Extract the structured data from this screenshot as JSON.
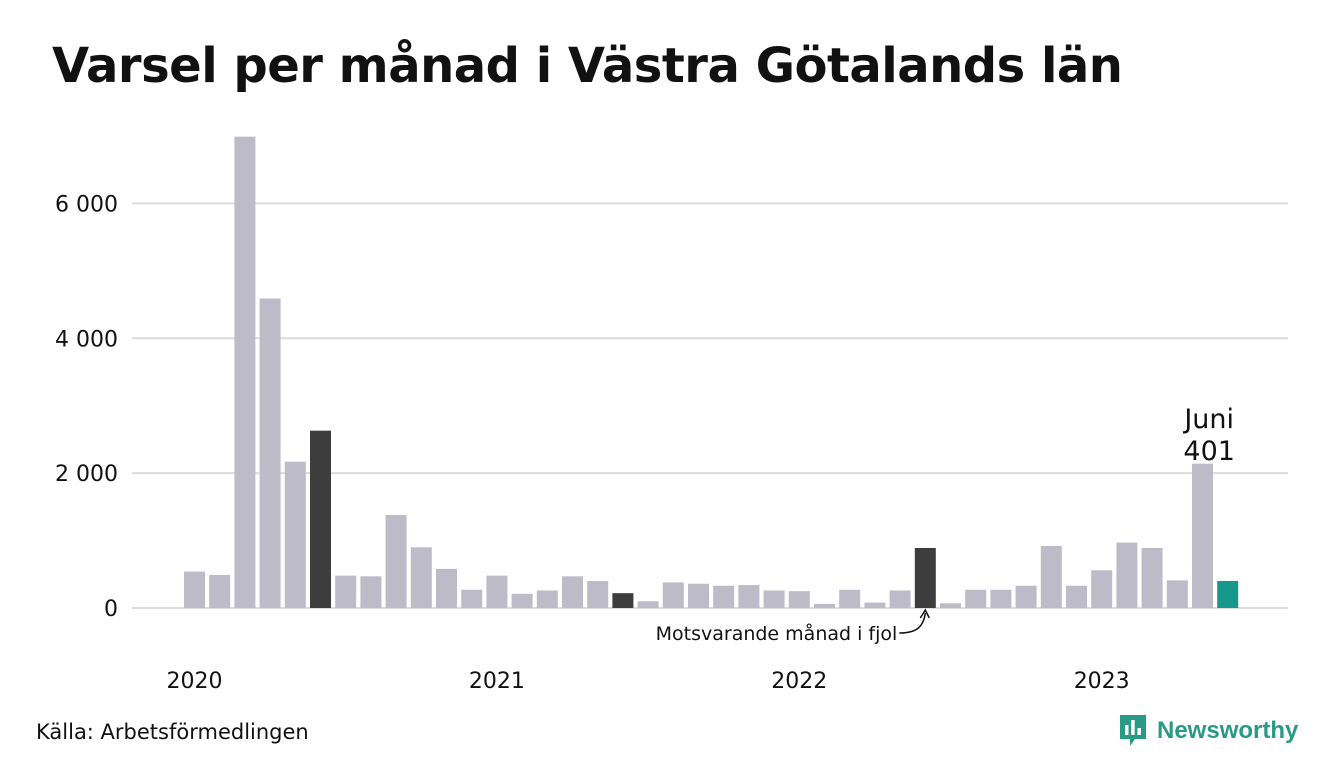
{
  "title": "Varsel per månad i Västra Götalands län",
  "source": "Källa: Arbetsförmedlingen",
  "brand": {
    "name": "Newsworthy",
    "icon": "bar-chart-speech-bubble-icon"
  },
  "colors": {
    "bar": "#bebbc9",
    "highlight_dark": "#3d3d3d",
    "current": "#17978a",
    "grid": "#dcdcdc",
    "brand": "#2a9a86"
  },
  "chart_data": {
    "type": "bar",
    "title": "Varsel per månad i Västra Götalands län",
    "xlabel": "",
    "ylabel": "",
    "ylim": [
      0,
      7000
    ],
    "yticks": [
      0,
      2000,
      4000,
      6000
    ],
    "ytick_labels": [
      "0",
      "2 000",
      "4 000",
      "6 000"
    ],
    "xtick_labels": [
      {
        "label": "2020",
        "index": 0
      },
      {
        "label": "2021",
        "index": 12
      },
      {
        "label": "2022",
        "index": 24
      },
      {
        "label": "2023",
        "index": 36
      }
    ],
    "grid": true,
    "values": [
      540,
      490,
      6990,
      4590,
      2170,
      2630,
      480,
      470,
      1380,
      900,
      580,
      270,
      480,
      210,
      260,
      470,
      400,
      220,
      100,
      380,
      360,
      330,
      340,
      260,
      250,
      60,
      270,
      80,
      260,
      890,
      70,
      270,
      270,
      330,
      920,
      330,
      560,
      970,
      890,
      410,
      2140,
      401
    ],
    "dark_indices": [
      5,
      17,
      29
    ],
    "current_index": 41,
    "current_label": {
      "month": "Juni",
      "value": "401"
    },
    "annotation": {
      "text": "Motsvarande månad i fjol",
      "index": 29
    }
  }
}
